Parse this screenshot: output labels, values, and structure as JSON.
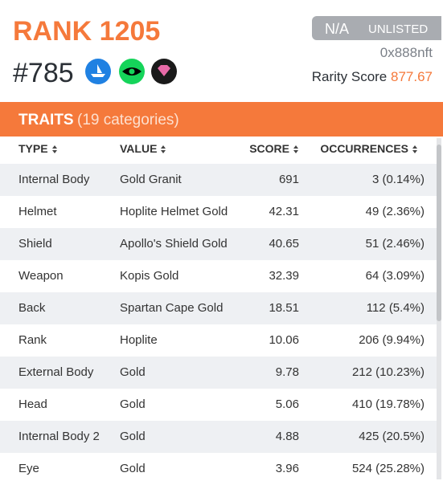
{
  "header": {
    "rank": "RANK 1205",
    "id": "#785",
    "price": "N/A",
    "status": "UNLISTED",
    "owner": "0x888nft",
    "rarity_label": "Rarity Score",
    "rarity_value": "877.67"
  },
  "traits": {
    "title": "TRAITS",
    "count": "(19 categories)",
    "columns": [
      "TYPE",
      "VALUE",
      "SCORE",
      "OCCURRENCES"
    ],
    "rows": [
      [
        "Internal Body",
        "Gold Granit",
        "691",
        "3 (0.14%)"
      ],
      [
        "Helmet",
        "Hoplite Helmet Gold",
        "42.31",
        "49 (2.36%)"
      ],
      [
        "Shield",
        "Apollo's Shield Gold",
        "40.65",
        "51 (2.46%)"
      ],
      [
        "Weapon",
        "Kopis Gold",
        "32.39",
        "64 (3.09%)"
      ],
      [
        "Back",
        "Spartan Cape Gold",
        "18.51",
        "112 (5.4%)"
      ],
      [
        "Rank",
        "Hoplite",
        "10.06",
        "206 (9.94%)"
      ],
      [
        "External Body",
        "Gold",
        "9.78",
        "212 (10.23%)"
      ],
      [
        "Head",
        "Gold",
        "5.06",
        "410 (19.78%)"
      ],
      [
        "Internal Body 2",
        "Gold",
        "4.88",
        "425 (20.5%)"
      ],
      [
        "Eye",
        "Gold",
        "3.96",
        "524 (25.28%)"
      ]
    ]
  }
}
